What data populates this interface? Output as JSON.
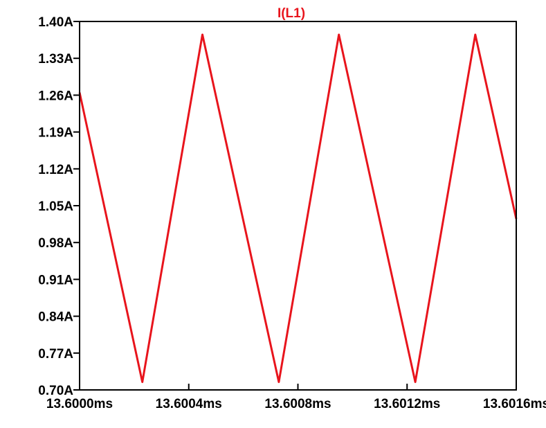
{
  "chart_data": {
    "type": "line",
    "title": "I(L1)",
    "xlabel": "",
    "ylabel": "",
    "xlim": [
      13.6,
      13.6016
    ],
    "ylim": [
      0.7,
      1.4
    ],
    "x_ticks": [
      13.6,
      13.6004,
      13.6008,
      13.6012,
      13.6016
    ],
    "x_tick_labels": [
      "13.6000ms",
      "13.6004ms",
      "13.6008ms",
      "13.6012ms",
      "13.6016ms"
    ],
    "y_ticks": [
      1.4,
      1.33,
      1.26,
      1.19,
      1.12,
      1.05,
      0.98,
      0.91,
      0.84,
      0.77,
      0.7
    ],
    "y_tick_labels": [
      "1.40A",
      "1.33A",
      "1.26A",
      "1.19A",
      "1.12A",
      "1.05A",
      "0.98A",
      "0.91A",
      "0.84A",
      "0.77A",
      "0.70A"
    ],
    "grid": false,
    "series": [
      {
        "name": "I(L1)",
        "color": "#e8141c",
        "x": [
          13.6,
          13.60023,
          13.60045,
          13.60073,
          13.60095,
          13.60123,
          13.60145,
          13.6016
        ],
        "values": [
          1.265,
          0.715,
          1.375,
          0.715,
          1.375,
          0.715,
          1.375,
          1.025
        ]
      }
    ]
  }
}
